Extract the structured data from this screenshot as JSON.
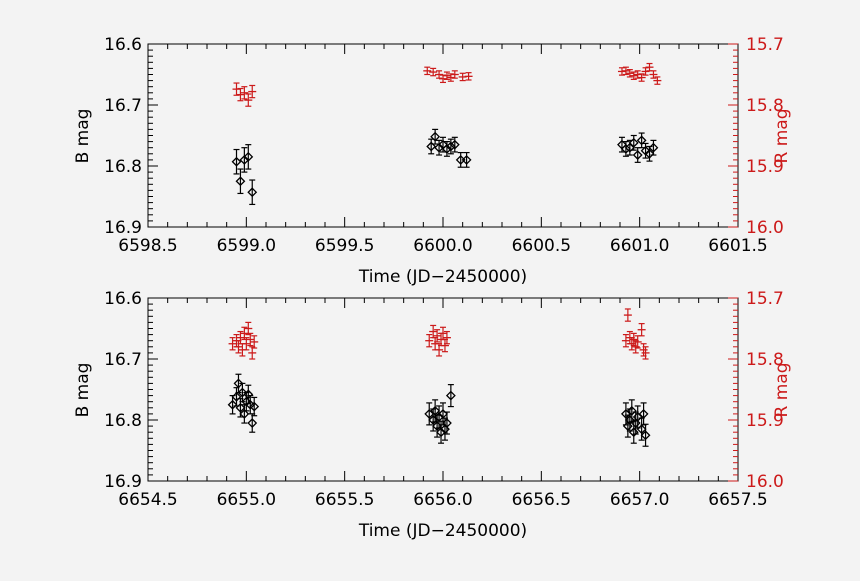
{
  "colors": {
    "b_series": "#000000",
    "r_series": "#cc1a1a",
    "background": "#f3f3f3"
  },
  "chart_data": [
    {
      "type": "scatter",
      "xlabel": "Time (JD−2450000)",
      "ylabel_left": "B mag",
      "ylabel_right": "R mag",
      "xlim": [
        6598.5,
        6601.5
      ],
      "ylim_left": [
        16.6,
        16.9
      ],
      "ylim_right": [
        15.7,
        16.0
      ],
      "y_inverted": true,
      "xticks": [
        "6598.5",
        "6599.0",
        "6599.5",
        "6600.0",
        "6600.5",
        "6601.0",
        "6601.5"
      ],
      "yticks_left": [
        "16.6",
        "16.7",
        "16.8",
        "16.9"
      ],
      "yticks_right": [
        "15.7",
        "15.8",
        "15.9",
        "16.0"
      ],
      "series": [
        {
          "band": "B",
          "axis": "left",
          "marker": "diamond",
          "points": [
            {
              "x": 6598.95,
              "y": 16.793,
              "err": 0.02
            },
            {
              "x": 6598.97,
              "y": 16.825,
              "err": 0.02
            },
            {
              "x": 6598.99,
              "y": 16.79,
              "err": 0.02
            },
            {
              "x": 6599.01,
              "y": 16.785,
              "err": 0.02
            },
            {
              "x": 6599.03,
              "y": 16.843,
              "err": 0.02
            },
            {
              "x": 6599.94,
              "y": 16.768,
              "err": 0.012
            },
            {
              "x": 6599.96,
              "y": 16.752,
              "err": 0.012
            },
            {
              "x": 6599.98,
              "y": 16.77,
              "err": 0.012
            },
            {
              "x": 6600.0,
              "y": 16.765,
              "err": 0.012
            },
            {
              "x": 6600.02,
              "y": 16.772,
              "err": 0.012
            },
            {
              "x": 6600.04,
              "y": 16.768,
              "err": 0.012
            },
            {
              "x": 6600.06,
              "y": 16.765,
              "err": 0.012
            },
            {
              "x": 6600.09,
              "y": 16.79,
              "err": 0.012
            },
            {
              "x": 6600.12,
              "y": 16.79,
              "err": 0.012
            },
            {
              "x": 6600.91,
              "y": 16.765,
              "err": 0.012
            },
            {
              "x": 6600.93,
              "y": 16.772,
              "err": 0.012
            },
            {
              "x": 6600.95,
              "y": 16.77,
              "err": 0.012
            },
            {
              "x": 6600.97,
              "y": 16.762,
              "err": 0.012
            },
            {
              "x": 6600.99,
              "y": 16.782,
              "err": 0.012
            },
            {
              "x": 6601.01,
              "y": 16.758,
              "err": 0.012
            },
            {
              "x": 6601.03,
              "y": 16.775,
              "err": 0.012
            },
            {
              "x": 6601.05,
              "y": 16.78,
              "err": 0.012
            },
            {
              "x": 6601.07,
              "y": 16.77,
              "err": 0.012
            }
          ]
        },
        {
          "band": "R",
          "axis": "right",
          "marker": "plus",
          "points": [
            {
              "x": 6598.95,
              "y": 15.774,
              "err": 0.01
            },
            {
              "x": 6598.97,
              "y": 15.783,
              "err": 0.01
            },
            {
              "x": 6598.99,
              "y": 15.78,
              "err": 0.01
            },
            {
              "x": 6599.01,
              "y": 15.792,
              "err": 0.01
            },
            {
              "x": 6599.03,
              "y": 15.778,
              "err": 0.01
            },
            {
              "x": 6599.92,
              "y": 15.744,
              "err": 0.006
            },
            {
              "x": 6599.95,
              "y": 15.746,
              "err": 0.006
            },
            {
              "x": 6599.98,
              "y": 15.75,
              "err": 0.006
            },
            {
              "x": 6600.0,
              "y": 15.757,
              "err": 0.006
            },
            {
              "x": 6600.02,
              "y": 15.752,
              "err": 0.006
            },
            {
              "x": 6600.04,
              "y": 15.755,
              "err": 0.006
            },
            {
              "x": 6600.06,
              "y": 15.75,
              "err": 0.006
            },
            {
              "x": 6600.1,
              "y": 15.754,
              "err": 0.006
            },
            {
              "x": 6600.13,
              "y": 15.753,
              "err": 0.006
            },
            {
              "x": 6600.91,
              "y": 15.745,
              "err": 0.006
            },
            {
              "x": 6600.93,
              "y": 15.744,
              "err": 0.006
            },
            {
              "x": 6600.95,
              "y": 15.748,
              "err": 0.006
            },
            {
              "x": 6600.97,
              "y": 15.752,
              "err": 0.006
            },
            {
              "x": 6600.99,
              "y": 15.75,
              "err": 0.006
            },
            {
              "x": 6601.01,
              "y": 15.755,
              "err": 0.006
            },
            {
              "x": 6601.03,
              "y": 15.745,
              "err": 0.006
            },
            {
              "x": 6601.05,
              "y": 15.738,
              "err": 0.006
            },
            {
              "x": 6601.07,
              "y": 15.75,
              "err": 0.006
            },
            {
              "x": 6601.09,
              "y": 15.76,
              "err": 0.006
            }
          ]
        }
      ]
    },
    {
      "type": "scatter",
      "xlabel": "Time (JD−2450000)",
      "ylabel_left": "B mag",
      "ylabel_right": "R mag",
      "xlim": [
        6654.5,
        6657.5
      ],
      "ylim_left": [
        16.6,
        16.9
      ],
      "ylim_right": [
        15.7,
        16.0
      ],
      "y_inverted": true,
      "xticks": [
        "6654.5",
        "6655.0",
        "6655.5",
        "6656.0",
        "6656.5",
        "6657.0",
        "6657.5"
      ],
      "yticks_left": [
        "16.6",
        "16.7",
        "16.8",
        "16.9"
      ],
      "yticks_right": [
        "15.7",
        "15.8",
        "15.9",
        "16.0"
      ],
      "series": [
        {
          "band": "B",
          "axis": "left",
          "marker": "diamond",
          "points": [
            {
              "x": 6654.93,
              "y": 16.775,
              "err": 0.015
            },
            {
              "x": 6654.95,
              "y": 16.762,
              "err": 0.015
            },
            {
              "x": 6654.96,
              "y": 16.74,
              "err": 0.015
            },
            {
              "x": 6654.97,
              "y": 16.78,
              "err": 0.015
            },
            {
              "x": 6654.98,
              "y": 16.755,
              "err": 0.015
            },
            {
              "x": 6654.99,
              "y": 16.79,
              "err": 0.015
            },
            {
              "x": 6655.0,
              "y": 16.77,
              "err": 0.015
            },
            {
              "x": 6655.01,
              "y": 16.758,
              "err": 0.015
            },
            {
              "x": 6655.02,
              "y": 16.775,
              "err": 0.015
            },
            {
              "x": 6655.03,
              "y": 16.805,
              "err": 0.015
            },
            {
              "x": 6655.04,
              "y": 16.778,
              "err": 0.015
            },
            {
              "x": 6655.93,
              "y": 16.79,
              "err": 0.018
            },
            {
              "x": 6655.95,
              "y": 16.8,
              "err": 0.018
            },
            {
              "x": 6655.96,
              "y": 16.785,
              "err": 0.018
            },
            {
              "x": 6655.97,
              "y": 16.81,
              "err": 0.018
            },
            {
              "x": 6655.98,
              "y": 16.795,
              "err": 0.018
            },
            {
              "x": 6655.99,
              "y": 16.82,
              "err": 0.018
            },
            {
              "x": 6656.0,
              "y": 16.79,
              "err": 0.018
            },
            {
              "x": 6656.01,
              "y": 16.815,
              "err": 0.018
            },
            {
              "x": 6656.02,
              "y": 16.805,
              "err": 0.018
            },
            {
              "x": 6656.04,
              "y": 16.76,
              "err": 0.018
            },
            {
              "x": 6656.93,
              "y": 16.79,
              "err": 0.018
            },
            {
              "x": 6656.94,
              "y": 16.81,
              "err": 0.018
            },
            {
              "x": 6656.95,
              "y": 16.8,
              "err": 0.018
            },
            {
              "x": 6656.96,
              "y": 16.785,
              "err": 0.018
            },
            {
              "x": 6656.97,
              "y": 16.82,
              "err": 0.018
            },
            {
              "x": 6656.98,
              "y": 16.805,
              "err": 0.018
            },
            {
              "x": 6656.99,
              "y": 16.795,
              "err": 0.018
            },
            {
              "x": 6657.01,
              "y": 16.815,
              "err": 0.018
            },
            {
              "x": 6657.02,
              "y": 16.79,
              "err": 0.018
            },
            {
              "x": 6657.03,
              "y": 16.825,
              "err": 0.018
            }
          ]
        },
        {
          "band": "R",
          "axis": "right",
          "marker": "plus",
          "points": [
            {
              "x": 6654.93,
              "y": 15.775,
              "err": 0.01
            },
            {
              "x": 6654.95,
              "y": 15.77,
              "err": 0.01
            },
            {
              "x": 6654.96,
              "y": 15.78,
              "err": 0.01
            },
            {
              "x": 6654.97,
              "y": 15.765,
              "err": 0.01
            },
            {
              "x": 6654.98,
              "y": 15.785,
              "err": 0.01
            },
            {
              "x": 6654.99,
              "y": 15.758,
              "err": 0.01
            },
            {
              "x": 6655.0,
              "y": 15.775,
              "err": 0.01
            },
            {
              "x": 6655.01,
              "y": 15.75,
              "err": 0.01
            },
            {
              "x": 6655.02,
              "y": 15.768,
              "err": 0.01
            },
            {
              "x": 6655.03,
              "y": 15.79,
              "err": 0.01
            },
            {
              "x": 6655.04,
              "y": 15.772,
              "err": 0.01
            },
            {
              "x": 6655.93,
              "y": 15.77,
              "err": 0.01
            },
            {
              "x": 6655.95,
              "y": 15.755,
              "err": 0.01
            },
            {
              "x": 6655.96,
              "y": 15.775,
              "err": 0.01
            },
            {
              "x": 6655.97,
              "y": 15.762,
              "err": 0.01
            },
            {
              "x": 6655.98,
              "y": 15.785,
              "err": 0.01
            },
            {
              "x": 6655.99,
              "y": 15.768,
              "err": 0.01
            },
            {
              "x": 6656.0,
              "y": 15.758,
              "err": 0.01
            },
            {
              "x": 6656.01,
              "y": 15.778,
              "err": 0.01
            },
            {
              "x": 6656.02,
              "y": 15.765,
              "err": 0.01
            },
            {
              "x": 6656.93,
              "y": 15.77,
              "err": 0.01
            },
            {
              "x": 6656.94,
              "y": 15.728,
              "err": 0.01
            },
            {
              "x": 6656.95,
              "y": 15.765,
              "err": 0.01
            },
            {
              "x": 6656.96,
              "y": 15.775,
              "err": 0.01
            },
            {
              "x": 6656.97,
              "y": 15.768,
              "err": 0.01
            },
            {
              "x": 6656.98,
              "y": 15.78,
              "err": 0.01
            },
            {
              "x": 6656.99,
              "y": 15.772,
              "err": 0.01
            },
            {
              "x": 6657.01,
              "y": 15.752,
              "err": 0.01
            },
            {
              "x": 6657.02,
              "y": 15.785,
              "err": 0.01
            },
            {
              "x": 6657.03,
              "y": 15.79,
              "err": 0.01
            }
          ]
        }
      ]
    }
  ]
}
